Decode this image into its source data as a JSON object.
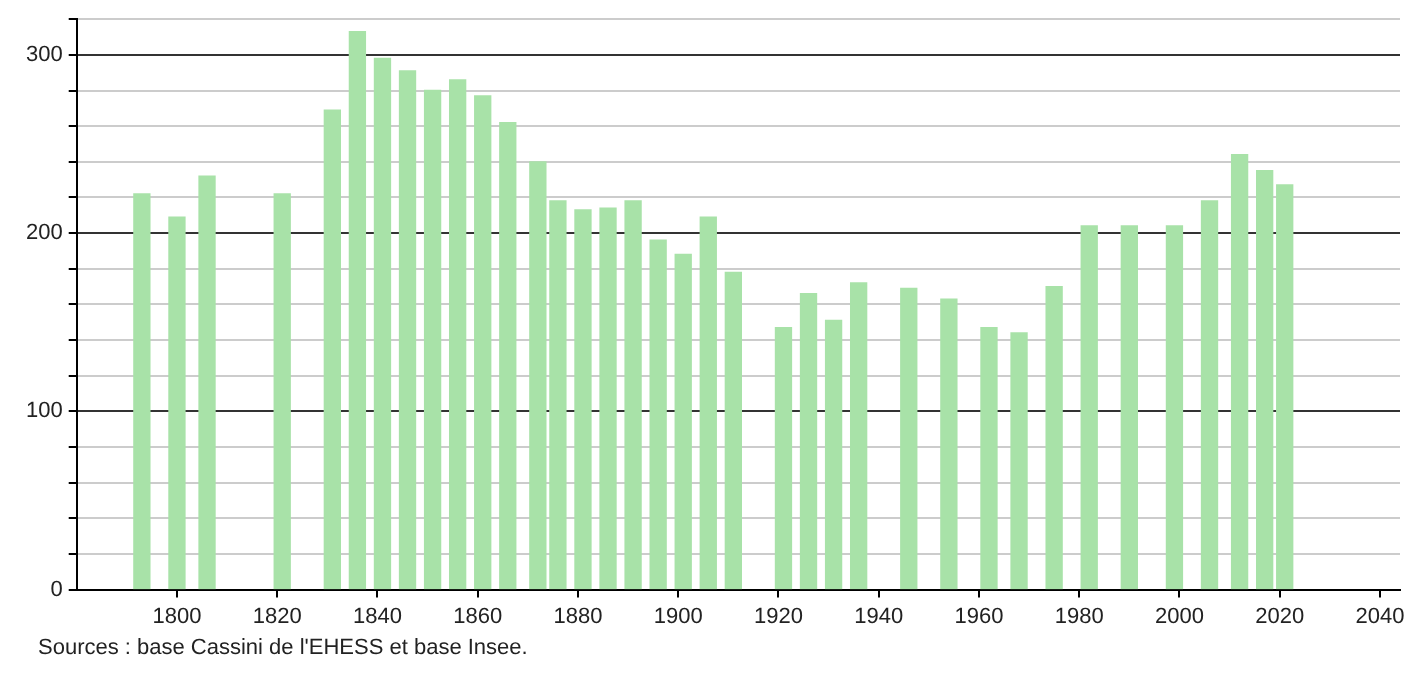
{
  "chart_data": {
    "type": "bar",
    "x": [
      1793,
      1800,
      1806,
      1821,
      1831,
      1836,
      1841,
      1846,
      1851,
      1856,
      1861,
      1866,
      1872,
      1876,
      1881,
      1886,
      1891,
      1896,
      1901,
      1906,
      1911,
      1921,
      1926,
      1931,
      1936,
      1946,
      1954,
      1962,
      1968,
      1975,
      1982,
      1990,
      1999,
      2006,
      2012,
      2017,
      2021
    ],
    "values": [
      222,
      209,
      232,
      222,
      269,
      313,
      298,
      291,
      280,
      286,
      277,
      262,
      240,
      218,
      213,
      214,
      218,
      196,
      188,
      209,
      178,
      147,
      166,
      151,
      172,
      169,
      163,
      147,
      144,
      170,
      204,
      204,
      204,
      218,
      244,
      235,
      227
    ],
    "color": "#a8e2a8",
    "xlim": [
      1780,
      2044
    ],
    "xticks": [
      1800,
      1820,
      1840,
      1860,
      1880,
      1900,
      1920,
      1940,
      1960,
      1980,
      2000,
      2020,
      2040
    ],
    "ylim": [
      0,
      320
    ],
    "yticks": [
      0,
      {
        "value": 20,
        "label": null
      },
      {
        "value": 40,
        "label": null
      },
      {
        "value": 60,
        "label": null
      },
      {
        "value": 80,
        "label": null
      },
      100,
      {
        "value": 120,
        "label": null
      },
      {
        "value": 140,
        "label": null
      },
      {
        "value": 160,
        "label": null
      },
      {
        "value": 180,
        "label": null
      },
      200,
      {
        "value": 220,
        "label": null
      },
      {
        "value": 240,
        "label": null
      },
      {
        "value": 260,
        "label": null
      },
      {
        "value": 280,
        "label": null
      },
      300,
      {
        "value": 320,
        "label": null
      }
    ],
    "grid": "y",
    "annotations": [
      "Sources : base Cassini de l'EHESS et base Insee."
    ]
  }
}
